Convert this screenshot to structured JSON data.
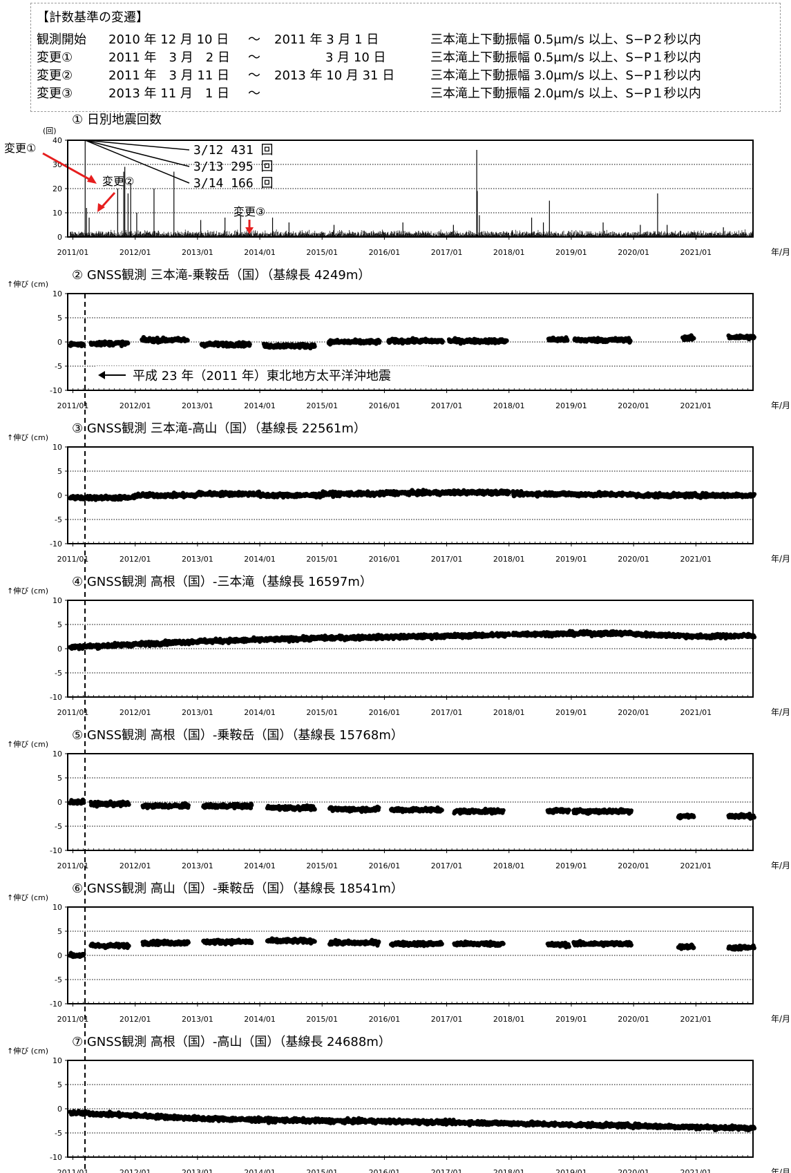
{
  "history": {
    "title": "【計数基準の変遷】",
    "rows": [
      {
        "label": "観測開始",
        "from": "2010 年 12 月 10 日",
        "sep": "〜",
        "to": "2011 年 3 月 1 日",
        "criteria": "三本滝上下動振幅 0.5μm/s 以上、S−P２秒以内"
      },
      {
        "label": "変更①",
        "from": "2011 年　3 月　2 日",
        "sep": "〜",
        "to": "3 月 10 日",
        "criteria": "三本滝上下動振幅 0.5μm/s 以上、S−P１秒以内"
      },
      {
        "label": "変更②",
        "from": "2011 年　3 月 11 日",
        "sep": "〜",
        "to": "2013 年 10 月 31 日",
        "criteria": "三本滝上下動振幅 3.0μm/s 以上、S−P１秒以内"
      },
      {
        "label": "変更③",
        "from": "2013 年 11 月　1 日",
        "sep": "〜",
        "to": "",
        "criteria": "三本滝上下動振幅 2.0μm/s 以上、S−P１秒以内"
      }
    ]
  },
  "x_axis": {
    "ticks": [
      "2011/01",
      "2012/01",
      "2013/01",
      "2014/01",
      "2015/01",
      "2016/01",
      "2017/01",
      "2018/01",
      "2019/01",
      "2020/01",
      "2021/01"
    ],
    "unit_label": "年/月",
    "range": [
      "2010-12",
      "2021-12"
    ]
  },
  "earthquake_label": "平成 23 年（2011 年）東北地方太平洋沖地震",
  "earthquake_date": "2011-03-11",
  "colors": {
    "axis": "#000000",
    "grid": "#000000",
    "data": "#000000",
    "accent": "#e61e1e"
  },
  "chart_data": [
    {
      "type": "bar",
      "title": "① 日別地震回数",
      "ylabel": "(回)",
      "ylim": [
        0,
        40
      ],
      "yticks": [
        0,
        10,
        20,
        30,
        40
      ],
      "annotations": [
        {
          "text": "3/12 431 回",
          "date": "2011-03-12",
          "value": 431
        },
        {
          "text": "3/13 295 回",
          "date": "2011-03-13",
          "value": 295
        },
        {
          "text": "3/14 166 回",
          "date": "2011-03-14",
          "value": 166
        }
      ],
      "markers": [
        {
          "text": "変更①",
          "date": "2011-03-02",
          "color": "red"
        },
        {
          "text": "変更②",
          "date": "2011-03-11",
          "color": "red"
        },
        {
          "text": "変更③",
          "date": "2013-11-01",
          "color": "red"
        }
      ],
      "spikes": [
        {
          "date": "2011-03-12",
          "value": 40
        },
        {
          "date": "2011-03-20",
          "value": 12
        },
        {
          "date": "2011-04-05",
          "value": 8
        },
        {
          "date": "2011-09-20",
          "value": 20
        },
        {
          "date": "2011-10-25",
          "value": 27
        },
        {
          "date": "2011-11-01",
          "value": 29
        },
        {
          "date": "2011-11-20",
          "value": 18
        },
        {
          "date": "2011-12-05",
          "value": 22
        },
        {
          "date": "2012-01-10",
          "value": 10
        },
        {
          "date": "2012-04-20",
          "value": 20
        },
        {
          "date": "2012-08-15",
          "value": 27
        },
        {
          "date": "2013-01-20",
          "value": 7
        },
        {
          "date": "2013-06-10",
          "value": 8
        },
        {
          "date": "2013-09-10",
          "value": 9
        },
        {
          "date": "2014-03-15",
          "value": 8
        },
        {
          "date": "2014-06-20",
          "value": 6
        },
        {
          "date": "2015-03-10",
          "value": 5
        },
        {
          "date": "2016-04-18",
          "value": 6
        },
        {
          "date": "2017-02-10",
          "value": 5
        },
        {
          "date": "2017-06-25",
          "value": 36
        },
        {
          "date": "2017-06-28",
          "value": 19
        },
        {
          "date": "2017-07-10",
          "value": 9
        },
        {
          "date": "2018-05-12",
          "value": 8
        },
        {
          "date": "2018-07-20",
          "value": 6
        },
        {
          "date": "2018-08-25",
          "value": 15
        },
        {
          "date": "2019-07-05",
          "value": 6
        },
        {
          "date": "2020-02-10",
          "value": 5
        },
        {
          "date": "2020-05-20",
          "value": 18
        },
        {
          "date": "2020-07-15",
          "value": 5
        },
        {
          "date": "2021-06-10",
          "value": 4
        }
      ],
      "background_level": 1.5
    },
    {
      "type": "scatter",
      "title": "② GNSS観測 三本滝-乗鞍岳（国）（基線長 4249m）",
      "ylabel": "↑伸び (cm)",
      "ylim": [
        -10,
        10
      ],
      "yticks": [
        -10,
        -5,
        0,
        5,
        10
      ],
      "segments": [
        {
          "from": "2010-12-15",
          "to": "2011-03-05",
          "y": -0.5
        },
        {
          "from": "2011-04-15",
          "to": "2011-11-20",
          "y": -0.3
        },
        {
          "from": "2012-02-10",
          "to": "2012-11-05",
          "y": 0.4
        },
        {
          "from": "2013-01-25",
          "to": "2013-11-05",
          "y": -0.5
        },
        {
          "from": "2014-01-25",
          "to": "2014-11-20",
          "y": -0.8
        },
        {
          "from": "2015-02-10",
          "to": "2015-12-05",
          "y": 0.0
        },
        {
          "from": "2016-01-25",
          "to": "2016-12-10",
          "y": 0.2
        },
        {
          "from": "2017-01-15",
          "to": "2017-12-20",
          "y": 0.2
        },
        {
          "from": "2018-08-20",
          "to": "2018-12-10",
          "y": 0.5
        },
        {
          "from": "2019-01-20",
          "to": "2019-12-15",
          "y": 0.4
        },
        {
          "from": "2020-10-15",
          "to": "2020-12-20",
          "y": 0.8
        },
        {
          "from": "2021-07-10",
          "to": "2021-12-10",
          "y": 1.0
        }
      ]
    },
    {
      "type": "scatter",
      "title": "③ GNSS観測 三本滝-高山（国）（基線長 22561m）",
      "ylabel": "↑伸び (cm)",
      "ylim": [
        -10,
        10
      ],
      "yticks": [
        -10,
        -5,
        0,
        5,
        10
      ],
      "segments": [
        {
          "from": "2010-12-15",
          "to": "2011-12-31",
          "y": -0.5
        },
        {
          "from": "2012-01-01",
          "to": "2012-12-31",
          "y": 0.0
        },
        {
          "from": "2013-01-01",
          "to": "2013-12-31",
          "y": 0.3
        },
        {
          "from": "2014-01-01",
          "to": "2014-12-31",
          "y": 0.0
        },
        {
          "from": "2015-01-01",
          "to": "2015-12-31",
          "y": 0.3
        },
        {
          "from": "2016-01-01",
          "to": "2016-12-31",
          "y": 0.5
        },
        {
          "from": "2017-01-01",
          "to": "2018-01-05",
          "y": 0.6
        },
        {
          "from": "2018-01-25",
          "to": "2018-12-31",
          "y": 0.3
        },
        {
          "from": "2019-01-01",
          "to": "2019-12-31",
          "y": 0.2
        },
        {
          "from": "2020-01-01",
          "to": "2020-12-31",
          "y": 0.0
        },
        {
          "from": "2021-01-01",
          "to": "2021-12-10",
          "y": 0.0
        }
      ]
    },
    {
      "type": "scatter",
      "title": "④ GNSS観測 高根（国）-三本滝（基線長 16597m）",
      "ylabel": "↑伸び (cm)",
      "ylim": [
        -10,
        10
      ],
      "yticks": [
        -10,
        -5,
        0,
        5,
        10
      ],
      "segments": [
        {
          "from": "2010-12-15",
          "to": "2011-12-31",
          "y": 0.3,
          "y2": 0.9
        },
        {
          "from": "2012-01-01",
          "to": "2012-12-31",
          "y": 0.9,
          "y2": 1.5
        },
        {
          "from": "2013-01-01",
          "to": "2013-12-31",
          "y": 1.5,
          "y2": 1.8
        },
        {
          "from": "2014-01-01",
          "to": "2014-12-31",
          "y": 1.8,
          "y2": 2.2
        },
        {
          "from": "2015-01-01",
          "to": "2015-12-31",
          "y": 2.2,
          "y2": 2.4
        },
        {
          "from": "2016-01-01",
          "to": "2016-12-31",
          "y": 2.4,
          "y2": 2.6
        },
        {
          "from": "2017-01-01",
          "to": "2018-01-05",
          "y": 2.6,
          "y2": 2.9
        },
        {
          "from": "2018-01-25",
          "to": "2018-12-31",
          "y": 3.0,
          "y2": 3.1
        },
        {
          "from": "2019-01-01",
          "to": "2019-12-31",
          "y": 3.1,
          "y2": 3.2
        },
        {
          "from": "2020-01-01",
          "to": "2020-12-31",
          "y": 3.0,
          "y2": 2.6
        },
        {
          "from": "2021-01-01",
          "to": "2021-12-10",
          "y": 2.5,
          "y2": 2.7
        }
      ]
    },
    {
      "type": "scatter",
      "title": "⑤ GNSS観測 高根（国）-乗鞍岳（国）（基線長 15768m）",
      "ylabel": "↑伸び (cm)",
      "ylim": [
        -10,
        10
      ],
      "yticks": [
        -10,
        -5,
        0,
        5,
        10
      ],
      "segments": [
        {
          "from": "2010-12-15",
          "to": "2011-03-05",
          "y": 0.0
        },
        {
          "from": "2011-04-15",
          "to": "2011-11-25",
          "y": -0.4
        },
        {
          "from": "2012-02-15",
          "to": "2012-11-10",
          "y": -0.8
        },
        {
          "from": "2013-02-05",
          "to": "2013-11-15",
          "y": -0.8
        },
        {
          "from": "2014-02-15",
          "to": "2014-11-20",
          "y": -1.2
        },
        {
          "from": "2015-02-15",
          "to": "2015-11-30",
          "y": -1.5
        },
        {
          "from": "2016-02-10",
          "to": "2016-12-05",
          "y": -1.6
        },
        {
          "from": "2017-02-15",
          "to": "2017-11-30",
          "y": -1.9
        },
        {
          "from": "2018-08-15",
          "to": "2018-12-20",
          "y": -1.8
        },
        {
          "from": "2019-01-15",
          "to": "2019-12-20",
          "y": -1.9
        },
        {
          "from": "2020-09-20",
          "to": "2020-12-20",
          "y": -2.9
        },
        {
          "from": "2021-07-10",
          "to": "2021-12-10",
          "y": -2.9
        }
      ]
    },
    {
      "type": "scatter",
      "title": "⑥ GNSS観測 高山（国）-乗鞍岳（国）（基線長 18541m）",
      "ylabel": "↑伸び (cm)",
      "ylim": [
        -10,
        10
      ],
      "yticks": [
        -10,
        -5,
        0,
        5,
        10
      ],
      "segments": [
        {
          "from": "2010-12-15",
          "to": "2011-03-05",
          "y": 0.0
        },
        {
          "from": "2011-04-15",
          "to": "2011-11-25",
          "y": 2.0
        },
        {
          "from": "2012-02-15",
          "to": "2012-11-10",
          "y": 2.6
        },
        {
          "from": "2013-02-05",
          "to": "2013-11-15",
          "y": 2.8
        },
        {
          "from": "2014-02-15",
          "to": "2014-11-20",
          "y": 3.0
        },
        {
          "from": "2015-02-15",
          "to": "2015-11-30",
          "y": 2.6
        },
        {
          "from": "2016-02-10",
          "to": "2016-12-05",
          "y": 2.4
        },
        {
          "from": "2017-02-15",
          "to": "2017-11-30",
          "y": 2.4
        },
        {
          "from": "2018-08-15",
          "to": "2018-12-20",
          "y": 2.2
        },
        {
          "from": "2019-01-15",
          "to": "2019-12-20",
          "y": 2.4
        },
        {
          "from": "2020-09-20",
          "to": "2020-12-20",
          "y": 1.8
        },
        {
          "from": "2021-07-10",
          "to": "2021-12-10",
          "y": 1.6
        }
      ]
    },
    {
      "type": "scatter",
      "title": "⑦ GNSS観測 高根（国）-高山（国）（基線長 24688m）",
      "ylabel": "↑伸び (cm)",
      "ylim": [
        -10,
        10
      ],
      "yticks": [
        -10,
        -5,
        0,
        5,
        10
      ],
      "segments": [
        {
          "from": "2010-12-15",
          "to": "2011-12-31",
          "y": -0.8,
          "y2": -1.4
        },
        {
          "from": "2012-01-01",
          "to": "2012-12-31",
          "y": -1.4,
          "y2": -2.0
        },
        {
          "from": "2013-01-01",
          "to": "2013-12-31",
          "y": -2.0,
          "y2": -2.3
        },
        {
          "from": "2014-01-01",
          "to": "2014-12-31",
          "y": -2.3,
          "y2": -2.5
        },
        {
          "from": "2015-01-01",
          "to": "2015-12-31",
          "y": -2.5,
          "y2": -2.6
        },
        {
          "from": "2016-01-01",
          "to": "2016-12-31",
          "y": -2.6,
          "y2": -2.8
        },
        {
          "from": "2017-01-01",
          "to": "2017-12-31",
          "y": -2.8,
          "y2": -3.0
        },
        {
          "from": "2018-01-01",
          "to": "2018-12-31",
          "y": -3.0,
          "y2": -3.3
        },
        {
          "from": "2019-01-01",
          "to": "2019-12-31",
          "y": -3.3,
          "y2": -3.5
        },
        {
          "from": "2020-01-01",
          "to": "2020-12-31",
          "y": -3.5,
          "y2": -3.8
        },
        {
          "from": "2021-01-01",
          "to": "2021-12-10",
          "y": -3.8,
          "y2": -4.0
        }
      ]
    }
  ]
}
